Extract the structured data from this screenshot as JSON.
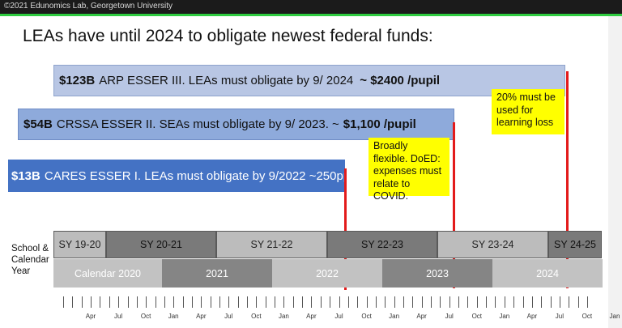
{
  "header": {
    "copyright": "©2021 Edunomics Lab, Georgetown University"
  },
  "title": "LEAs have until 2024 to obligate newest federal funds:",
  "bars": [
    {
      "amount": "$123B",
      "text": "ARP ESSER III. LEAs must obligate by 9/ 2024",
      "pupil_bold": "~ $2400 /pupil",
      "pupil_prefix": "",
      "pupil_suffix": ""
    },
    {
      "amount": "$54B",
      "text": "CRSSA ESSER II. SEAs must obligate by 9/ 2023. ~",
      "pupil_bold": "$1,100 /pupil"
    },
    {
      "amount": "$13B",
      "text": "CARES ESSER I. LEAs must obligate by 9/2022 ~250pp"
    }
  ],
  "notes": {
    "learning_loss": "20% must be used for learning loss",
    "flexible": "Broadly flexible. DoED: expenses must relate to COVID."
  },
  "row_label": {
    "line1": "School &",
    "line2": "Calendar",
    "line3": "Year"
  },
  "school_years": [
    "SY 19-20",
    "SY 20-21",
    "SY 21-22",
    "SY 22-23",
    "SY 23-24",
    "SY 24-25"
  ],
  "calendar_years": [
    "Calendar 2020",
    "2021",
    "2022",
    "2023",
    "2024"
  ],
  "month_labels": [
    "Apr",
    "Jul",
    "Oct",
    "Jan",
    "Apr",
    "Jul",
    "Oct",
    "Jan",
    "Apr",
    "Jul",
    "Oct",
    "Jan",
    "Apr",
    "Jul",
    "Oct",
    "Jan",
    "Apr",
    "Jul",
    "Oct",
    "Jan"
  ],
  "colors": {
    "accent_green": "#2ecc40",
    "deadline_red": "#e31b1b",
    "note_yellow": "#ffff00",
    "esser3": "#b8c6e4",
    "esser2": "#8eaadb",
    "esser1": "#4472c4"
  }
}
